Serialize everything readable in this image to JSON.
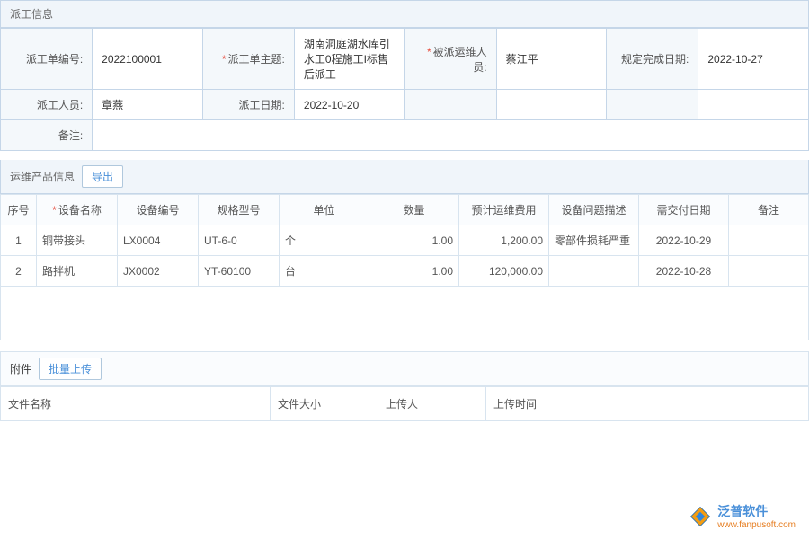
{
  "section1": {
    "title": "派工信息"
  },
  "info": {
    "row1": {
      "label1": "派工单编号:",
      "val1": "2022100001",
      "label2": "派工单主题:",
      "val2": "湖南洞庭湖水库引水工0程施工I标售后派工",
      "label3": "被派运维人员:",
      "val3": "蔡江平",
      "label4": "规定完成日期:",
      "val4": "2022-10-27"
    },
    "row2": {
      "label1": "派工人员:",
      "val1": "章燕",
      "label2": "派工日期:",
      "val2": "2022-10-20",
      "label3": "",
      "val3": "",
      "label4": "",
      "val4": ""
    },
    "row3": {
      "label1": "备注:",
      "val1": ""
    }
  },
  "section2": {
    "title": "运维产品信息",
    "exportBtn": "导出"
  },
  "dataTable": {
    "headers": {
      "c0": "序号",
      "c1": "设备名称",
      "c2": "设备编号",
      "c3": "规格型号",
      "c4": "单位",
      "c5": "数量",
      "c6": "预计运维费用",
      "c7": "设备问题描述",
      "c8": "需交付日期",
      "c9": "备注"
    },
    "rows": [
      {
        "c0": "1",
        "c1": "铜带接头",
        "c2": "LX0004",
        "c3": "UT-6-0",
        "c4": "个",
        "c5": "1.00",
        "c6": "1,200.00",
        "c7": "零部件损耗严重",
        "c8": "2022-10-29",
        "c9": ""
      },
      {
        "c0": "2",
        "c1": "路拌机",
        "c2": "JX0002",
        "c3": "YT-60100",
        "c4": "台",
        "c5": "1.00",
        "c6": "120,000.00",
        "c7": "",
        "c8": "2022-10-28",
        "c9": ""
      }
    ]
  },
  "attach": {
    "title": "附件",
    "uploadBtn": "批量上传",
    "headers": {
      "c0": "文件名称",
      "c1": "文件大小",
      "c2": "上传人",
      "c3": "上传时间"
    }
  },
  "logo": {
    "cn": "泛普软件",
    "url": "www.fanpusoft.com"
  }
}
